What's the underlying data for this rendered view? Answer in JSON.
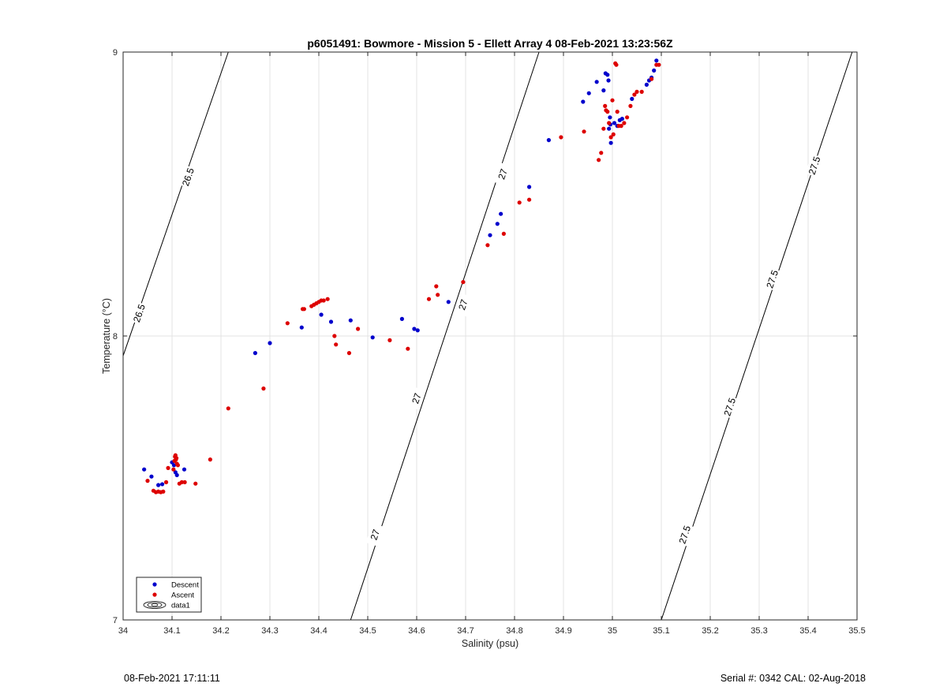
{
  "chart_data": {
    "type": "scatter",
    "title": "p6051491: Bowmore - Mission 5 - Ellett Array 4 08-Feb-2021 13:23:56Z",
    "xlabel": "Salinity (psu)",
    "ylabel": "Temperature (°C)",
    "xlim": [
      34,
      35.5
    ],
    "ylim": [
      7,
      9
    ],
    "xticks": [
      "34",
      "34.1",
      "34.2",
      "34.3",
      "34.4",
      "34.5",
      "34.6",
      "34.7",
      "34.8",
      "34.9",
      "35",
      "35.1",
      "35.2",
      "35.3",
      "35.4",
      "35.5"
    ],
    "yticks": [
      "7",
      "8",
      "9"
    ],
    "grid": true,
    "legend_position": "bottom-left",
    "legend": [
      "Descent",
      "Ascent",
      "data1"
    ],
    "series": [
      {
        "name": "Descent",
        "color": "#0000cc",
        "points": [
          [
            34.043,
            7.53
          ],
          [
            34.058,
            7.505
          ],
          [
            34.072,
            7.475
          ],
          [
            34.08,
            7.478
          ],
          [
            34.1,
            7.555
          ],
          [
            34.104,
            7.545
          ],
          [
            34.107,
            7.52
          ],
          [
            34.11,
            7.51
          ],
          [
            34.125,
            7.53
          ],
          [
            34.27,
            7.94
          ],
          [
            34.3,
            7.975
          ],
          [
            34.365,
            8.03
          ],
          [
            34.405,
            8.075
          ],
          [
            34.425,
            8.05
          ],
          [
            34.465,
            8.055
          ],
          [
            34.51,
            7.995
          ],
          [
            34.57,
            8.06
          ],
          [
            34.595,
            8.025
          ],
          [
            34.602,
            8.02
          ],
          [
            34.665,
            8.12
          ],
          [
            34.75,
            8.355
          ],
          [
            34.765,
            8.395
          ],
          [
            34.772,
            8.43
          ],
          [
            34.83,
            8.525
          ],
          [
            34.87,
            8.69
          ],
          [
            34.94,
            8.825
          ],
          [
            34.952,
            8.855
          ],
          [
            34.968,
            8.895
          ],
          [
            34.982,
            8.865
          ],
          [
            34.986,
            8.925
          ],
          [
            34.99,
            8.92
          ],
          [
            34.992,
            8.9
          ],
          [
            34.993,
            8.73
          ],
          [
            34.995,
            8.77
          ],
          [
            34.996,
            8.745
          ],
          [
            34.997,
            8.68
          ],
          [
            35.004,
            8.75
          ],
          [
            35.01,
            8.74
          ],
          [
            35.015,
            8.76
          ],
          [
            35.02,
            8.765
          ],
          [
            35.04,
            8.835
          ],
          [
            35.07,
            8.885
          ],
          [
            35.075,
            8.9
          ],
          [
            35.08,
            8.91
          ],
          [
            35.085,
            8.935
          ],
          [
            35.09,
            8.97
          ]
        ]
      },
      {
        "name": "Ascent",
        "color": "#dd0000",
        "points": [
          [
            34.05,
            7.49
          ],
          [
            34.062,
            7.455
          ],
          [
            34.067,
            7.45
          ],
          [
            34.072,
            7.452
          ],
          [
            34.077,
            7.45
          ],
          [
            34.082,
            7.452
          ],
          [
            34.088,
            7.485
          ],
          [
            34.092,
            7.535
          ],
          [
            34.103,
            7.53
          ],
          [
            34.105,
            7.56
          ],
          [
            34.106,
            7.575
          ],
          [
            34.107,
            7.58
          ],
          [
            34.108,
            7.565
          ],
          [
            34.109,
            7.57
          ],
          [
            34.11,
            7.55
          ],
          [
            34.112,
            7.545
          ],
          [
            34.115,
            7.48
          ],
          [
            34.12,
            7.485
          ],
          [
            34.126,
            7.485
          ],
          [
            34.148,
            7.48
          ],
          [
            34.178,
            7.565
          ],
          [
            34.215,
            7.745
          ],
          [
            34.287,
            7.815
          ],
          [
            34.336,
            8.045
          ],
          [
            34.367,
            8.095
          ],
          [
            34.37,
            8.095
          ],
          [
            34.385,
            8.105
          ],
          [
            34.39,
            8.11
          ],
          [
            34.395,
            8.115
          ],
          [
            34.4,
            8.12
          ],
          [
            34.405,
            8.125
          ],
          [
            34.41,
            8.125
          ],
          [
            34.418,
            8.13
          ],
          [
            34.432,
            8.0
          ],
          [
            34.435,
            7.97
          ],
          [
            34.462,
            7.94
          ],
          [
            34.48,
            8.025
          ],
          [
            34.545,
            7.985
          ],
          [
            34.582,
            7.955
          ],
          [
            34.625,
            8.13
          ],
          [
            34.64,
            8.175
          ],
          [
            34.643,
            8.145
          ],
          [
            34.695,
            8.19
          ],
          [
            34.745,
            8.32
          ],
          [
            34.778,
            8.36
          ],
          [
            34.81,
            8.47
          ],
          [
            34.83,
            8.48
          ],
          [
            34.895,
            8.7
          ],
          [
            34.942,
            8.72
          ],
          [
            34.972,
            8.62
          ],
          [
            34.977,
            8.645
          ],
          [
            34.982,
            8.73
          ],
          [
            34.985,
            8.81
          ],
          [
            34.987,
            8.795
          ],
          [
            34.99,
            8.79
          ],
          [
            34.993,
            8.75
          ],
          [
            34.997,
            8.7
          ],
          [
            35.0,
            8.83
          ],
          [
            35.002,
            8.71
          ],
          [
            35.006,
            8.96
          ],
          [
            35.008,
            8.955
          ],
          [
            35.01,
            8.79
          ],
          [
            35.013,
            8.74
          ],
          [
            35.018,
            8.74
          ],
          [
            35.024,
            8.75
          ],
          [
            35.03,
            8.77
          ],
          [
            35.037,
            8.81
          ],
          [
            35.045,
            8.85
          ],
          [
            35.05,
            8.86
          ],
          [
            35.06,
            8.86
          ],
          [
            35.08,
            8.905
          ],
          [
            35.09,
            8.955
          ],
          [
            35.095,
            8.955
          ]
        ]
      }
    ],
    "contours": [
      {
        "label": "26.5",
        "from": [
          34.0,
          7.93
        ],
        "to": [
          34.215,
          9.0
        ],
        "label_at": [
          [
            34.133,
            8.56
          ],
          [
            34.033,
            8.08
          ]
        ]
      },
      {
        "label": "27",
        "from": [
          34.465,
          7.0
        ],
        "to": [
          34.85,
          9.0
        ],
        "label_at": [
          [
            34.515,
            7.3
          ],
          [
            34.6,
            7.78
          ],
          [
            34.695,
            8.11
          ],
          [
            34.776,
            8.57
          ]
        ]
      },
      {
        "label": "27.5",
        "from": [
          35.1,
          7.0
        ],
        "to": [
          35.49,
          9.0
        ],
        "label_at": [
          [
            35.148,
            7.3
          ],
          [
            35.24,
            7.75
          ],
          [
            35.327,
            8.2
          ],
          [
            35.413,
            8.6
          ]
        ]
      }
    ]
  },
  "footer": {
    "left": "08-Feb-2021 17:11:11",
    "right": "Serial #: 0342  CAL: 02-Aug-2018"
  }
}
